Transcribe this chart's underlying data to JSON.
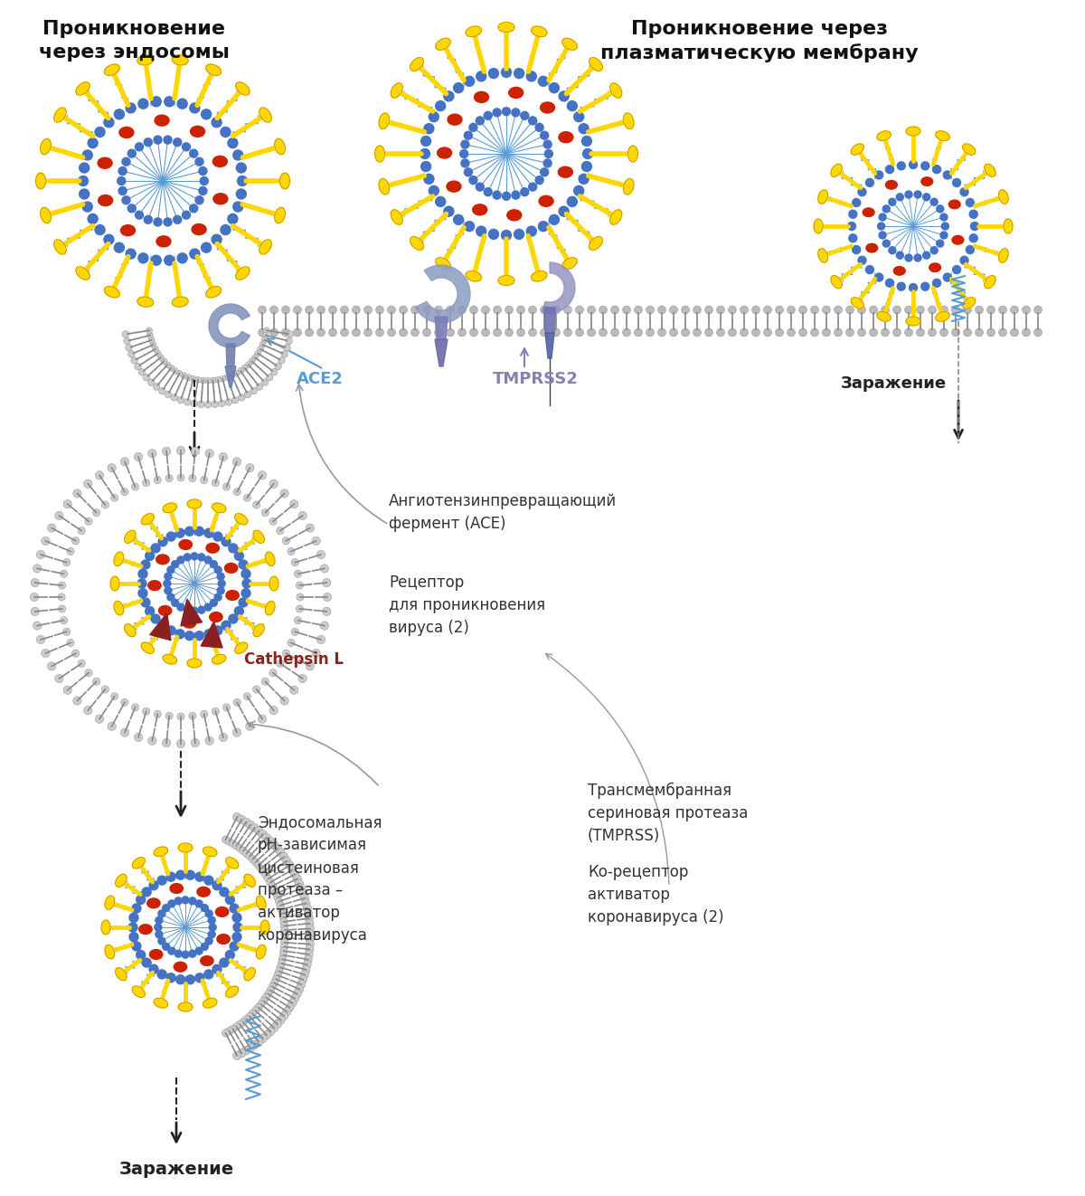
{
  "title_left": "Проникновение\nчерез эндосомы",
  "title_right": "Проникновение через\nплазматическую мембрану",
  "label_ace2": "ACE2",
  "label_tmprss2": "TMPRSS2",
  "label_infection_right": "Заражение",
  "label_infection_bottom": "Заражение",
  "label_cathepsin": "Cathepsin L",
  "label_ace2_desc": "Ангиотензинпревращающий\nфермент (ACE)",
  "label_ace2_desc2": "Рецептор\nдля проникновения\nвируса (2)",
  "label_tmprss_desc": "Трансмембранная\nсериновая протеаза\n(TMPRSS)",
  "label_tmprss_desc2": "Ко-рецептор\nактиватор\nкоронавируса (2)",
  "label_endosomal": "Эндосомальная\npH-зависимая\nцистеиновая\nпротеаза –\nактиватор\nкоронавируса",
  "virus_spike_color": "#FFD700",
  "virus_membrane_color": "#4472C4",
  "virus_red_color": "#CC2200",
  "virus_line_color": "#5B9BD5",
  "virus_spike_outline": "#B8860B",
  "membrane_head_color": "#CCCCCC",
  "membrane_tail_color": "#CCCCCC",
  "ace2_body_color": "#8B9DC5",
  "ace2_stalk_color": "#7B7DB5",
  "tmprss2_body_color": "#9B9DC5",
  "tmprss2_stalk_color": "#6B6DA5",
  "cathepsin_color": "#8B2020",
  "arrow_dark": "#222222",
  "arrow_gray": "#999999",
  "ace2_label_color": "#5B9BD5",
  "tmprss2_label_color": "#8B7DB5",
  "cathepsin_label_color": "#8B2020",
  "text_color": "#333333",
  "bg_color": "#FFFFFF"
}
